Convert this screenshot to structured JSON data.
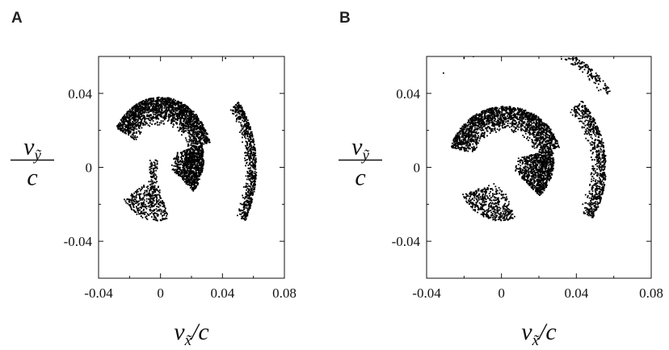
{
  "panels": [
    {
      "letter": "A"
    },
    {
      "letter": "B"
    }
  ],
  "chart_data": [
    {
      "type": "scatter",
      "panel": "A",
      "xlabel": {
        "main": "v",
        "sub": "x̃",
        "suffix": "/c"
      },
      "ylabel": {
        "num": "v",
        "sub": "ỹ",
        "den": "c"
      },
      "xlim": [
        -0.04,
        0.08
      ],
      "ylim": [
        -0.06,
        0.06
      ],
      "xticks": [
        -0.04,
        0,
        0.04,
        0.08
      ],
      "xtick_labels": [
        "-0.04",
        "0",
        "0.04",
        "0.08"
      ],
      "yticks": [
        0.04,
        0,
        -0.04
      ],
      "ytick_labels": [
        "0.04",
        "0",
        "-0.04"
      ],
      "marker_color": "#000000",
      "clusters": [
        {
          "name": "main arc",
          "arc": {
            "cx": 0.0,
            "cy": 0.005,
            "r_min": 0.018,
            "r_max": 0.033,
            "theta_from": 150,
            "theta_to": 15
          },
          "n": 1800
        },
        {
          "name": "arc tail",
          "arc": {
            "cx": 0.0,
            "cy": 0.005,
            "r_min": 0.008,
            "r_max": 0.028,
            "theta_from": 15,
            "theta_to": -40
          },
          "n": 900
        },
        {
          "name": "outer arc",
          "arc": {
            "cx": 0.0,
            "cy": 0.0,
            "r_min": 0.054,
            "r_max": 0.062,
            "theta_from": 35,
            "theta_to": -28
          },
          "n": 700
        },
        {
          "name": "inner fan",
          "arc": {
            "cx": -0.003,
            "cy": -0.005,
            "r_min": 0.004,
            "r_max": 0.024,
            "theta_from": 210,
            "theta_to": 290
          },
          "n": 350
        },
        {
          "name": "inner vertical",
          "box": {
            "x0": -0.007,
            "x1": -0.002,
            "y0": -0.018,
            "y1": 0.004
          },
          "n": 120
        }
      ],
      "stray_points": [
        [
          0.042,
          0.059
        ]
      ]
    },
    {
      "type": "scatter",
      "panel": "B",
      "xlabel": {
        "main": "v",
        "sub": "x̃",
        "suffix": "/c"
      },
      "ylabel": {
        "num": "v",
        "sub": "ỹ",
        "den": "c"
      },
      "xlim": [
        -0.04,
        0.08
      ],
      "ylim": [
        -0.06,
        0.06
      ],
      "xticks": [
        -0.04,
        0,
        0.04,
        0.08
      ],
      "xtick_labels": [
        "-0.04",
        "0",
        "0.04",
        "0.08"
      ],
      "yticks": [
        0.04,
        0,
        -0.04
      ],
      "ytick_labels": [
        "0.04",
        "0",
        "-0.04"
      ],
      "marker_color": "#000000",
      "clusters": [
        {
          "name": "main arc",
          "arc": {
            "cx": 0.002,
            "cy": 0.003,
            "r_min": 0.016,
            "r_max": 0.03,
            "theta_from": 165,
            "theta_to": 15
          },
          "n": 1800
        },
        {
          "name": "arc tail",
          "arc": {
            "cx": 0.002,
            "cy": 0.003,
            "r_min": 0.006,
            "r_max": 0.026,
            "theta_from": 15,
            "theta_to": -45
          },
          "n": 900
        },
        {
          "name": "outer arc",
          "arc": {
            "cx": 0.0,
            "cy": 0.0,
            "r_min": 0.047,
            "r_max": 0.056,
            "theta_from": 40,
            "theta_to": -30
          },
          "n": 700
        },
        {
          "name": "inner fan",
          "arc": {
            "cx": 0.0,
            "cy": -0.007,
            "r_min": 0.004,
            "r_max": 0.022,
            "theta_from": 200,
            "theta_to": 290
          },
          "n": 450
        },
        {
          "name": "top arc",
          "arc": {
            "cx": 0.0,
            "cy": 0.0,
            "r_min": 0.066,
            "r_max": 0.072,
            "theta_from": 80,
            "theta_to": 35
          },
          "n": 220
        }
      ],
      "stray_points": [
        [
          -0.031,
          0.051
        ],
        [
          -0.02,
          0.059
        ],
        [
          -0.015,
          0.06
        ]
      ]
    }
  ]
}
